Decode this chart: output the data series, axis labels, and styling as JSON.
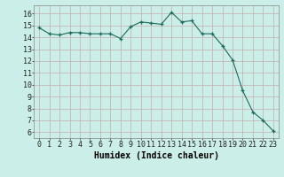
{
  "x": [
    0,
    1,
    2,
    3,
    4,
    5,
    6,
    7,
    8,
    9,
    10,
    11,
    12,
    13,
    14,
    15,
    16,
    17,
    18,
    19,
    20,
    21,
    22,
    23
  ],
  "y": [
    14.8,
    14.3,
    14.2,
    14.4,
    14.4,
    14.3,
    14.3,
    14.3,
    13.9,
    14.9,
    15.3,
    15.2,
    15.1,
    16.1,
    15.3,
    15.4,
    14.3,
    14.3,
    13.3,
    12.1,
    9.5,
    7.7,
    7.0,
    6.1
  ],
  "line_color": "#1a6b5a",
  "marker": "+",
  "marker_size": 3,
  "bg_color": "#cceee8",
  "grid_color": "#c8b8b8",
  "xlabel": "Humidex (Indice chaleur)",
  "xlabel_fontsize": 7,
  "ylabel_ticks": [
    6,
    7,
    8,
    9,
    10,
    11,
    12,
    13,
    14,
    15,
    16
  ],
  "xtick_labels": [
    "0",
    "1",
    "2",
    "3",
    "4",
    "5",
    "6",
    "7",
    "8",
    "9",
    "10",
    "11",
    "12",
    "13",
    "14",
    "15",
    "16",
    "17",
    "18",
    "19",
    "20",
    "21",
    "22",
    "23"
  ],
  "xticks": [
    0,
    1,
    2,
    3,
    4,
    5,
    6,
    7,
    8,
    9,
    10,
    11,
    12,
    13,
    14,
    15,
    16,
    17,
    18,
    19,
    20,
    21,
    22,
    23
  ],
  "ylim": [
    5.5,
    16.7
  ],
  "xlim": [
    -0.5,
    23.5
  ],
  "tick_fontsize": 6,
  "lw": 0.8
}
